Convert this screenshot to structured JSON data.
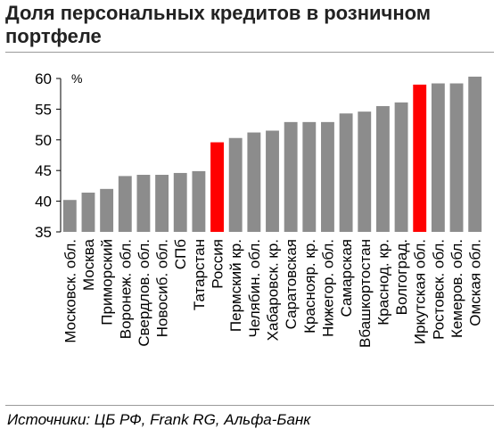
{
  "title": "Доля персональных кредитов в розничном портфеле",
  "source": "Источники: ЦБ РФ, Frank RG, Альфа-Банк",
  "chart_data": {
    "type": "bar",
    "title": "Доля персональных кредитов в розничном портфеле",
    "xlabel": "",
    "ylabel": "",
    "unit": "%",
    "ylim": [
      35,
      60
    ],
    "yticks": [
      35,
      40,
      45,
      50,
      55,
      60
    ],
    "grid": false,
    "legend": "none",
    "categories": [
      "Московск. обл.",
      "Москва",
      "Приморский",
      "Воронеж. обл.",
      "Свердлов. обл.",
      "Новосиб. обл.",
      "СПб",
      "Татарстан",
      "Россия",
      "Пермский кр.",
      "Челябин. обл.",
      "Хабаровск. кр.",
      "Саратовская",
      "Краснояр. кр.",
      "Нижегор. обл.",
      "Самарская",
      "Вбашкортостан",
      "Краснод. кр.",
      "Волгоград.",
      "Иркутская обл.",
      "Ростовск. обл.",
      "Кемеров. обл.",
      "Омская обл."
    ],
    "values": [
      40.2,
      41.4,
      42.0,
      44.1,
      44.3,
      44.3,
      44.6,
      44.9,
      49.6,
      50.3,
      51.2,
      51.5,
      52.9,
      52.9,
      52.9,
      54.3,
      54.6,
      55.5,
      56.1,
      59.0,
      59.2,
      59.2,
      60.3
    ],
    "highlighted": [
      "Россия",
      "Иркутская обл."
    ],
    "colors": {
      "bar": "#8c8c8c",
      "highlight": "#ff0000",
      "axis": "#000000"
    }
  }
}
